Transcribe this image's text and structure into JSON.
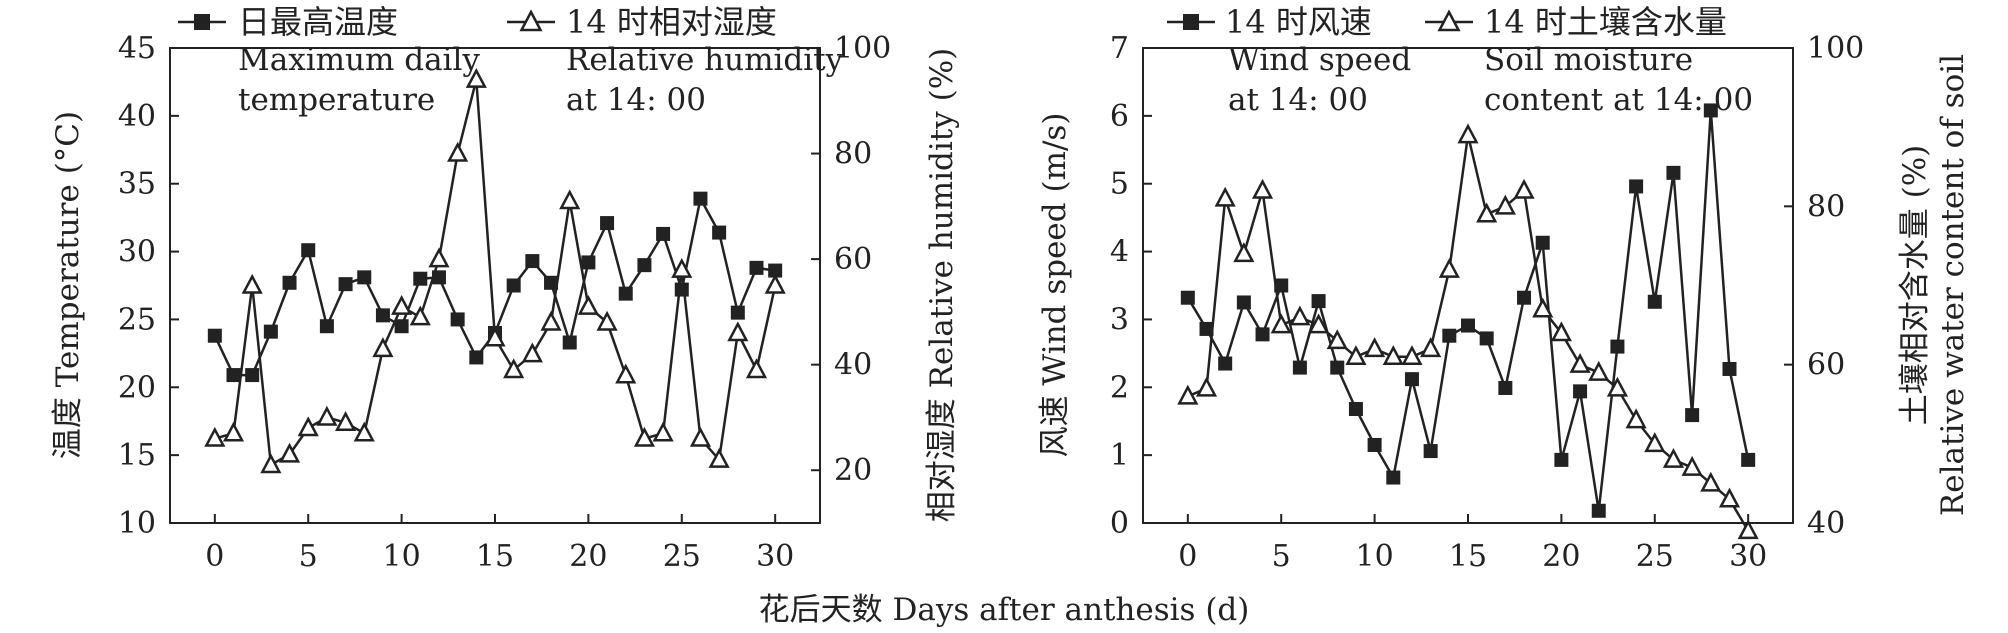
{
  "chart_data": [
    {
      "type": "line",
      "x": [
        0,
        1,
        2,
        3,
        4,
        5,
        6,
        7,
        8,
        9,
        10,
        11,
        12,
        13,
        14,
        15,
        16,
        17,
        18,
        19,
        20,
        21,
        22,
        23,
        24,
        25,
        26,
        27,
        28,
        29,
        30
      ],
      "xticks": [
        "0",
        "5",
        "10",
        "15",
        "20",
        "25",
        "30"
      ],
      "xlim": [
        -2.4,
        32.4
      ],
      "y_left": {
        "label": "温度 Temperature (°C)",
        "lim": [
          10,
          45
        ],
        "ticks": [
          "10",
          "15",
          "20",
          "25",
          "30",
          "35",
          "40",
          "45"
        ]
      },
      "y_right": {
        "label": "相对湿度 Relative humidity (%)",
        "lim": [
          10,
          100
        ],
        "ticks": [
          "20",
          "40",
          "60",
          "80",
          "100"
        ]
      },
      "series": [
        {
          "name": "日最高温度",
          "marker": "square",
          "axis": "left",
          "values": [
            23.8,
            20.9,
            20.9,
            24.1,
            27.7,
            30.1,
            24.5,
            27.6,
            28.1,
            25.3,
            24.5,
            28.0,
            28.1,
            25.0,
            22.2,
            24.0,
            27.5,
            29.3,
            27.7,
            23.3,
            29.2,
            32.1,
            26.9,
            29.0,
            31.3,
            27.2,
            33.9,
            31.4,
            25.5,
            28.8,
            28.6
          ]
        },
        {
          "name": "14 时相对湿度",
          "marker": "triangle",
          "axis": "right",
          "values": [
            26,
            27,
            55,
            21,
            23,
            28,
            30,
            29,
            27,
            43,
            51,
            49,
            60,
            80,
            94,
            45,
            39,
            42,
            48,
            71,
            51,
            48,
            38,
            26,
            27,
            58,
            26,
            22,
            46,
            39,
            55
          ]
        }
      ],
      "legend": [
        {
          "label": "日最高温度",
          "marker": "square"
        },
        {
          "label": "14 时相对湿度",
          "marker": "triangle"
        }
      ],
      "annotations": [
        {
          "id": "temp",
          "lines": [
            "Maximum daily",
            "temperature"
          ]
        },
        {
          "id": "rh",
          "lines": [
            "Relative humidity",
            "at 14: 00"
          ]
        }
      ]
    },
    {
      "type": "line",
      "x": [
        0,
        1,
        2,
        3,
        4,
        5,
        6,
        7,
        8,
        9,
        10,
        11,
        12,
        13,
        14,
        15,
        16,
        17,
        18,
        19,
        20,
        21,
        22,
        23,
        24,
        25,
        26,
        27,
        28,
        29,
        30
      ],
      "xticks": [
        "0",
        "5",
        "10",
        "15",
        "20",
        "25",
        "30"
      ],
      "xlim": [
        -2.4,
        32.4
      ],
      "y_left": {
        "label": "风速 Wind speed (m/s)",
        "lim": [
          0,
          7
        ],
        "ticks": [
          "0",
          "1",
          "2",
          "3",
          "4",
          "5",
          "6",
          "7"
        ]
      },
      "y_right": {
        "label_lines": [
          "土壤相对含水量 (%)",
          "Relative water content of soil"
        ],
        "lim": [
          40,
          100
        ],
        "ticks": [
          "40",
          "60",
          "80",
          "100"
        ]
      },
      "series": [
        {
          "name": "14 时风速",
          "marker": "square",
          "axis": "left",
          "values": [
            3.32,
            2.86,
            2.35,
            3.25,
            2.78,
            3.5,
            2.29,
            3.27,
            2.29,
            1.68,
            1.15,
            0.67,
            2.12,
            1.06,
            2.76,
            2.91,
            2.72,
            1.99,
            3.32,
            4.13,
            0.93,
            1.94,
            0.18,
            2.6,
            4.96,
            3.26,
            5.16,
            1.59,
            6.08,
            2.27,
            0.93
          ]
        },
        {
          "name": "14 时土壤含水量",
          "marker": "triangle",
          "axis": "right",
          "values": [
            56,
            57,
            81,
            74,
            82,
            65,
            66,
            65,
            63,
            61,
            62,
            61,
            61,
            62,
            72,
            89,
            79,
            80,
            82,
            67,
            64,
            60,
            59,
            57,
            53,
            50,
            48,
            47,
            45,
            43,
            39
          ]
        }
      ],
      "legend": [
        {
          "label": "14 时风速",
          "marker": "square"
        },
        {
          "label": "14 时土壤含水量",
          "marker": "triangle"
        }
      ],
      "annotations": [
        {
          "id": "wind",
          "lines": [
            "Wind speed",
            "at 14: 00"
          ]
        },
        {
          "id": "soil",
          "lines": [
            "Soil moisture",
            "content at 14: 00"
          ]
        }
      ]
    }
  ],
  "x_axis_title": "花后天数 Days after anthesis (d)"
}
